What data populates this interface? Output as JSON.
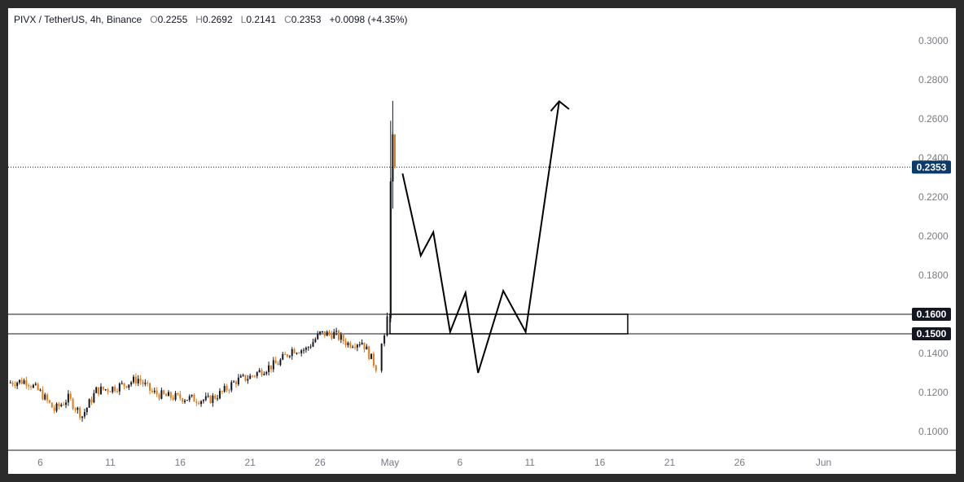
{
  "header": {
    "symbol": "PIVX / TetherUS, 4h, Binance",
    "o_label": "O",
    "o_value": "0.2255",
    "h_label": "H",
    "h_value": "0.2692",
    "l_label": "L",
    "l_value": "0.2141",
    "c_label": "C",
    "c_value": "0.2353",
    "change": "+0.0098 (+4.35%)"
  },
  "colors": {
    "up": "#131722",
    "down": "#e07b1a",
    "last_price_badge": "#0c3a6b",
    "level_badge": "#131722",
    "drawing": "#000000"
  },
  "chart_data": {
    "type": "candlestick",
    "interval": "4h",
    "ylim": [
      0.09,
      0.31
    ],
    "yticks": [
      "0.3000",
      "0.2800",
      "0.2600",
      "0.2400",
      "0.2200",
      "0.2000",
      "0.1800",
      "0.1400",
      "0.1200",
      "0.1000"
    ],
    "xticks": [
      {
        "label": "6",
        "day": 6
      },
      {
        "label": "11",
        "day": 11
      },
      {
        "label": "16",
        "day": 16
      },
      {
        "label": "21",
        "day": 21
      },
      {
        "label": "26",
        "day": 26
      },
      {
        "label": "May",
        "day": 31
      },
      {
        "label": "6",
        "day": 36
      },
      {
        "label": "11",
        "day": 41
      },
      {
        "label": "16",
        "day": 46
      },
      {
        "label": "21",
        "day": 51
      },
      {
        "label": "26",
        "day": 56
      },
      {
        "label": "Jun",
        "day": 62
      }
    ],
    "xlim": [
      3.7,
      68.2
    ],
    "last_price": {
      "value": 0.2353,
      "label": "0.2353"
    },
    "horizontal_levels": [
      {
        "value": 0.16,
        "label": "0.1600"
      },
      {
        "value": 0.15,
        "label": "0.1500"
      }
    ],
    "zone": {
      "x0": 31.0,
      "x1": 48.0,
      "y0": 0.15,
      "y1": 0.16
    },
    "projection_path": [
      [
        31.9,
        0.232
      ],
      [
        33.2,
        0.19
      ],
      [
        34.1,
        0.202
      ],
      [
        35.3,
        0.151
      ],
      [
        36.4,
        0.171
      ],
      [
        37.3,
        0.13
      ],
      [
        39.1,
        0.172
      ],
      [
        40.7,
        0.151
      ],
      [
        43.1,
        0.269
      ]
    ],
    "arrow_head": [
      [
        42.5,
        0.264
      ],
      [
        43.1,
        0.269
      ],
      [
        43.8,
        0.265
      ]
    ],
    "close_anchors": [
      [
        3.7,
        0.125
      ],
      [
        5.0,
        0.126
      ],
      [
        6.0,
        0.12
      ],
      [
        7.0,
        0.111
      ],
      [
        8.0,
        0.117
      ],
      [
        9.0,
        0.108
      ],
      [
        10.0,
        0.121
      ],
      [
        11.0,
        0.122
      ],
      [
        12.0,
        0.124
      ],
      [
        13.0,
        0.127
      ],
      [
        14.0,
        0.12
      ],
      [
        15.0,
        0.118
      ],
      [
        16.5,
        0.117
      ],
      [
        18.0,
        0.116
      ],
      [
        19.0,
        0.12
      ],
      [
        20.0,
        0.126
      ],
      [
        21.0,
        0.128
      ],
      [
        22.0,
        0.132
      ],
      [
        23.0,
        0.135
      ],
      [
        24.0,
        0.142
      ],
      [
        25.0,
        0.142
      ],
      [
        26.0,
        0.15
      ],
      [
        27.0,
        0.15
      ],
      [
        28.0,
        0.145
      ],
      [
        29.0,
        0.146
      ],
      [
        30.0,
        0.133
      ],
      [
        30.4,
        0.145
      ],
      [
        30.8,
        0.158
      ],
      [
        31.05,
        0.228
      ],
      [
        31.2,
        0.252
      ],
      [
        31.35,
        0.2353
      ]
    ],
    "special_wicks": [
      {
        "day": 31.2,
        "open": 0.228,
        "high": 0.2692,
        "low": 0.214,
        "close": 0.2353
      },
      {
        "day": 31.05,
        "open": 0.158,
        "high": 0.259,
        "low": 0.156,
        "close": 0.228
      }
    ]
  }
}
